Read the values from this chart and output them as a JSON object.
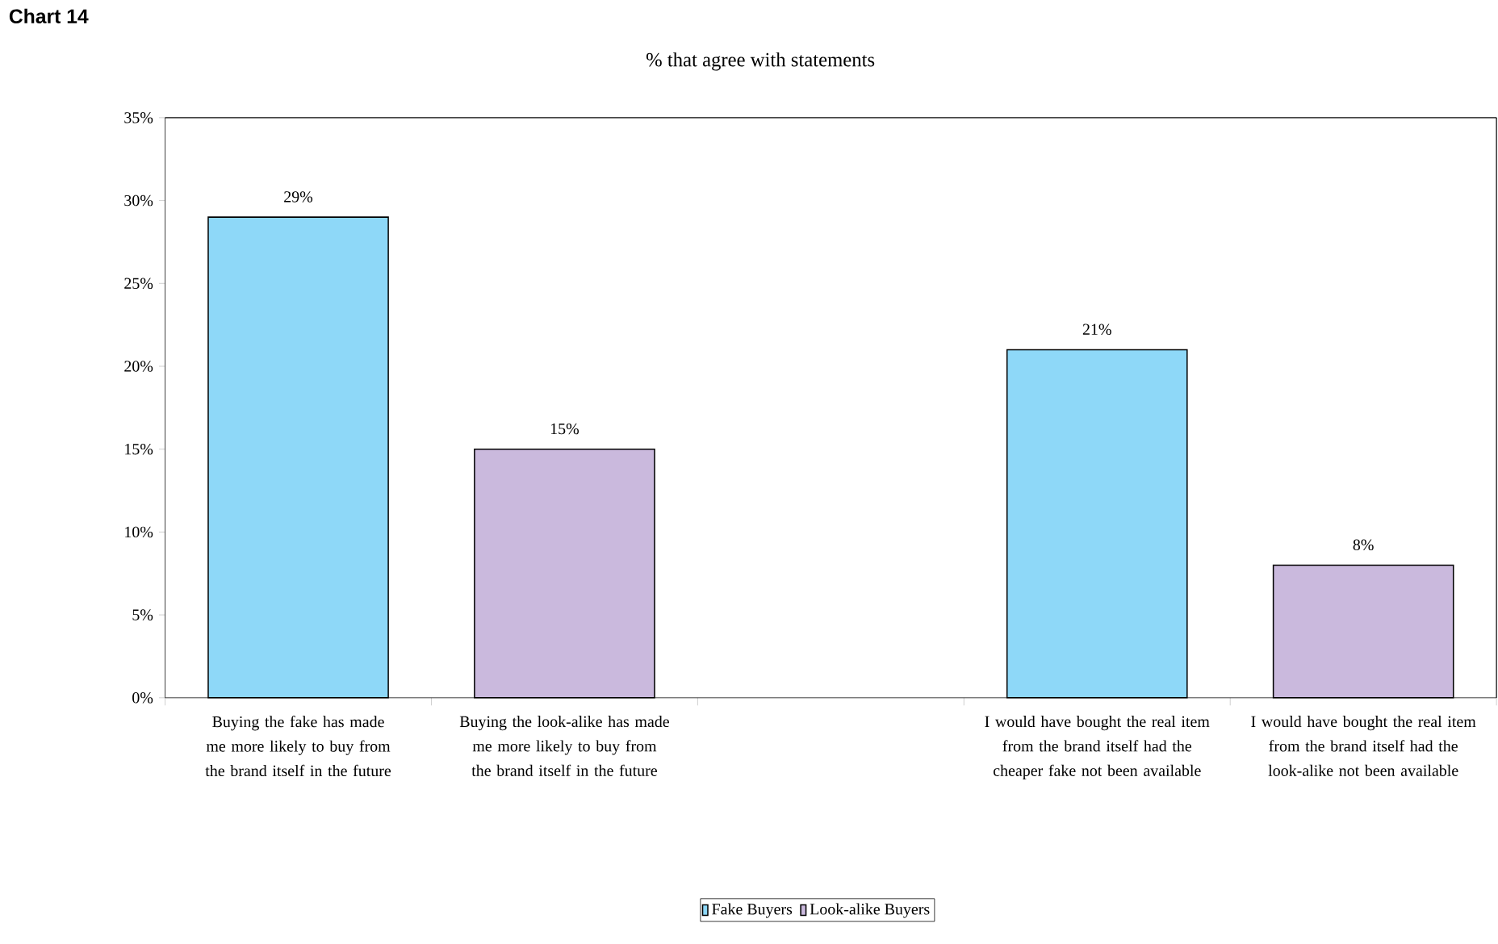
{
  "chart_data": {
    "type": "bar",
    "title": "Chart 14",
    "subtitle": "% that agree with statements",
    "categories": [
      "Buying the fake has made me more likely to buy from the brand itself in the future",
      "Buying the look-alike has made me more likely to buy from the brand itself in the future",
      null,
      "I would have bought the real item from the brand itself had the cheaper fake not been available",
      "I would have bought the real item from the brand itself had the look-alike not been available"
    ],
    "series": [
      {
        "name": "Fake Buyers",
        "color": "#8ed8f8",
        "values": [
          29,
          null,
          null,
          21,
          null
        ],
        "value_labels": [
          "29%",
          null,
          null,
          "21%",
          null
        ]
      },
      {
        "name": "Look-alike Buyers",
        "color": "#cab9dd",
        "values": [
          null,
          15,
          null,
          null,
          8
        ],
        "value_labels": [
          null,
          "15%",
          null,
          null,
          "8%"
        ]
      }
    ],
    "ylim": [
      0,
      35
    ],
    "yticks": [
      {
        "value": 0,
        "label": "0%"
      },
      {
        "value": 5,
        "label": "5%"
      },
      {
        "value": 10,
        "label": "10%"
      },
      {
        "value": 15,
        "label": "15%"
      },
      {
        "value": 20,
        "label": "20%"
      },
      {
        "value": 25,
        "label": "25%"
      },
      {
        "value": 30,
        "label": "30%"
      },
      {
        "value": 35,
        "label": "35%"
      }
    ],
    "grid": false,
    "legend": "bottom"
  }
}
